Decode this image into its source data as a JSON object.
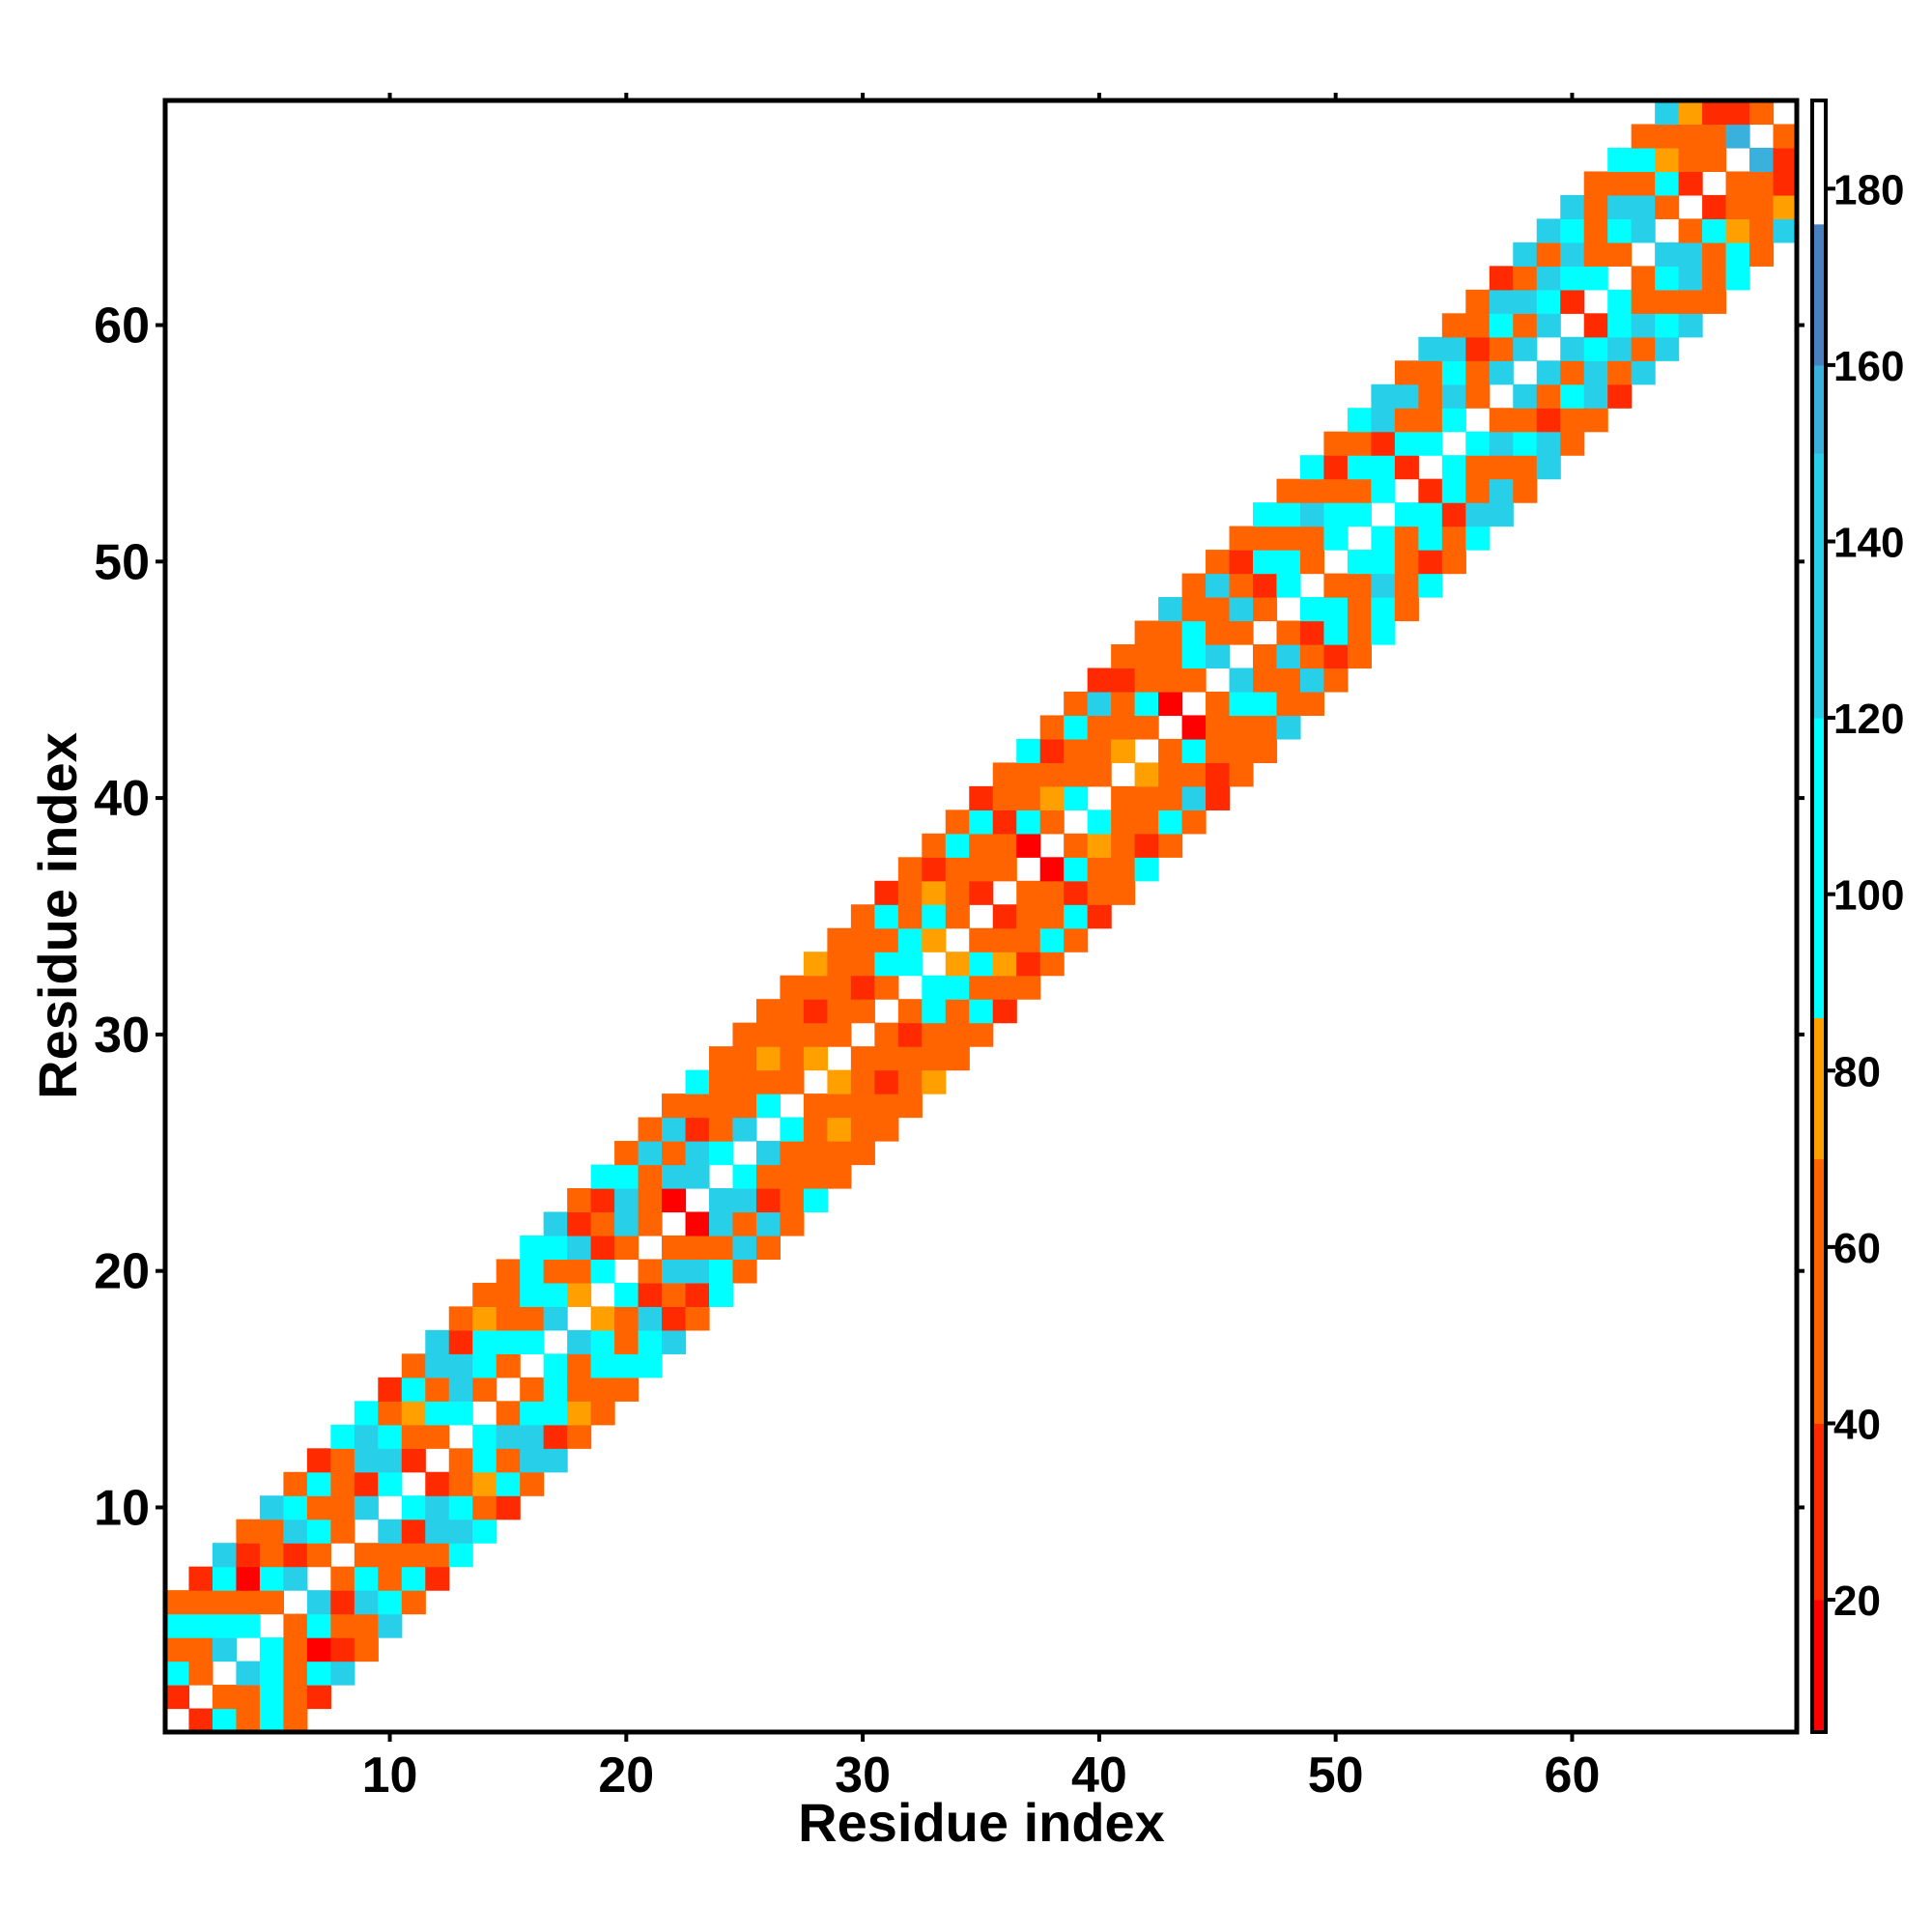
{
  "chart_data": {
    "type": "heatmap",
    "title": "",
    "xlabel": "Residue index",
    "ylabel": "Residue index",
    "xlim": [
      1,
      69
    ],
    "ylim": [
      1,
      69
    ],
    "x_ticks": [
      10,
      20,
      30,
      40,
      50,
      60
    ],
    "y_ticks": [
      10,
      20,
      30,
      40,
      50,
      60
    ],
    "colorbar": {
      "range": [
        5,
        190
      ],
      "ticks": [
        20,
        40,
        60,
        80,
        100,
        120,
        140,
        160,
        180
      ],
      "segments": [
        {
          "from": 5,
          "to": 20,
          "color": "#ff0000"
        },
        {
          "from": 20,
          "to": 40,
          "color": "#ff2a00"
        },
        {
          "from": 40,
          "to": 70,
          "color": "#ff6400"
        },
        {
          "from": 70,
          "to": 86,
          "color": "#ffa000"
        },
        {
          "from": 86,
          "to": 120,
          "color": "#00ffff"
        },
        {
          "from": 120,
          "to": 150,
          "color": "#28cfe8"
        },
        {
          "from": 150,
          "to": 160,
          "color": "#3ab0dd"
        },
        {
          "from": 160,
          "to": 176,
          "color": "#4a7fc0"
        },
        {
          "from": 176,
          "to": 190,
          "color": "#ffffff"
        }
      ]
    },
    "grid": false,
    "legend": "colorbar-right",
    "value_rule": "angle between residue i and residue j for 1 <= |i-j| <= 5; cells with |i-j| = 0 or > 5 are blank",
    "band_values": [
      [
        26,
        47,
        125,
        104,
        51,
        128,
        49,
        44,
        124,
        102,
        20,
        46,
        108,
        56,
        51,
        107,
        138,
        70,
        110,
        52,
        44,
        18,
        120,
        112,
        137,
        103,
        56,
        73,
        50,
        47,
        62,
        97,
        73,
        52,
        34,
        54,
        18,
        55,
        98,
        48,
        77,
        55,
        19,
        50,
        128,
        43,
        55,
        93,
        61,
        104,
        114,
        99,
        28,
        96,
        108,
        66,
        142,
        128,
        128,
        33,
        106,
        59,
        129,
        56,
        24,
        48,
        155,
        65
      ],
      [
        104,
        55,
        97,
        60,
        102,
        32,
        114,
        60,
        38,
        131,
        56,
        116,
        124,
        103,
        96,
        64,
        114,
        52,
        34,
        125,
        59,
        126,
        140,
        65,
        58,
        56,
        54,
        56,
        57,
        21,
        104,
        92,
        105,
        56,
        57,
        58,
        118,
        73,
        65,
        55,
        50,
        100,
        55,
        114,
        46,
        120,
        25,
        99,
        54,
        108,
        56,
        102,
        105,
        47,
        124,
        58,
        53,
        58,
        118,
        109,
        48,
        108,
        121,
        93,
        68,
        57,
        22
      ],
      [
        48,
        104,
        56,
        19,
        49,
        127,
        50,
        52,
        122,
        108,
        72,
        63,
        120,
        116,
        53,
        98,
        50,
        130,
        52,
        130,
        48,
        59,
        39,
        59,
        51,
        74,
        64,
        32,
        53,
        48,
        54,
        54,
        71,
        62,
        46,
        31,
        61,
        52,
        57,
        46,
        55,
        49,
        51,
        109,
        52,
        62,
        96,
        47,
        131,
        53,
        103,
        24,
        55,
        60,
        104,
        24,
        108,
        132,
        135,
        125,
        41,
        127,
        49,
        76,
        58,
        30
      ],
      [
        95,
        62,
        111,
        27,
        55,
        96,
        104,
        48,
        137,
        57,
        114,
        133,
        23,
        72,
        64,
        116,
        103,
        34,
        33,
        109,
        125,
        137,
        64,
        48,
        48,
        45,
        58,
        45,
        41,
        65,
        105,
        64,
        36,
        104,
        117,
        67,
        44,
        27,
        108,
        132,
        23,
        51,
        55,
        61,
        124,
        39,
        47,
        118,
        65,
        32,
        59,
        134,
        134,
        46,
        121,
        58,
        130,
        50,
        63,
        119,
        59,
        52,
        95,
        58,
        73
      ],
      [
        57,
        36,
        132,
        48,
        127,
        53,
        29,
        102,
        118,
        24,
        60,
        121,
        46,
        53,
        60,
        101,
        129,
        58,
        96,
        52,
        58,
        53,
        117,
        61,
        55,
        56,
        67,
        74,
        62,
        44,
        24,
        54,
        51,
        55,
        39,
        59,
        113,
        50,
        69,
        38,
        56,
        54,
        122,
        49,
        48,
        54,
        103,
        49,
        119,
        56,
        99,
        123,
        61,
        130,
        58,
        60,
        25,
        120,
        135,
        124,
        48,
        99,
        49,
        130
      ]
    ]
  }
}
